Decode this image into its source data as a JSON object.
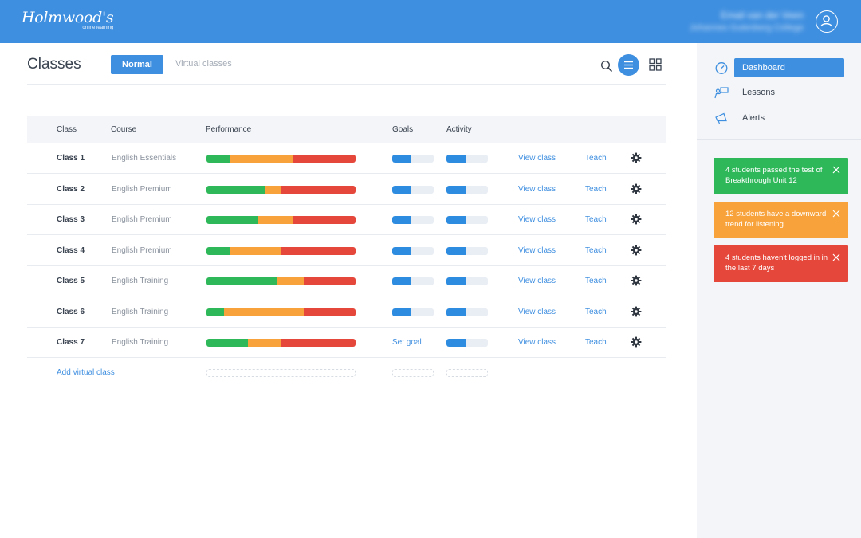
{
  "header": {
    "logo_text": "Holmwood's",
    "logo_subtext": "online learning",
    "user_name": "Email van der Veen",
    "user_school": "Johannes Gutenberg College"
  },
  "main": {
    "title": "Classes",
    "tabs": {
      "normal": "Normal",
      "virtual": "Virtual classes"
    },
    "columns": {
      "class": "Class",
      "course": "Course",
      "performance": "Performance",
      "goals": "Goals",
      "activity": "Activity"
    },
    "rows": [
      {
        "class": "Class 1",
        "course": "English Essentials",
        "performance": {
          "green": 0.16,
          "orange": 0.42,
          "red": 0.42
        },
        "goals": 0.46,
        "goal_label": "",
        "activity": 0.46,
        "view": "View class",
        "teach": "Teach"
      },
      {
        "class": "Class 2",
        "course": "English Premium",
        "performance": {
          "green": 0.39,
          "orange": 0.11,
          "red": 0.5
        },
        "goals": 0.46,
        "goal_label": "",
        "activity": 0.46,
        "view": "View class",
        "teach": "Teach"
      },
      {
        "class": "Class 3",
        "course": "English Premium",
        "performance": {
          "green": 0.35,
          "orange": 0.23,
          "red": 0.42
        },
        "goals": 0.46,
        "goal_label": "",
        "activity": 0.46,
        "view": "View class",
        "teach": "Teach"
      },
      {
        "class": "Class 4",
        "course": "English Premium",
        "performance": {
          "green": 0.16,
          "orange": 0.34,
          "red": 0.5
        },
        "goals": 0.46,
        "goal_label": "",
        "activity": 0.46,
        "view": "View class",
        "teach": "Teach"
      },
      {
        "class": "Class 5",
        "course": "English Training",
        "performance": {
          "green": 0.47,
          "orange": 0.18,
          "red": 0.35
        },
        "goals": 0.46,
        "goal_label": "",
        "activity": 0.46,
        "view": "View class",
        "teach": "Teach"
      },
      {
        "class": "Class 6",
        "course": "English Training",
        "performance": {
          "green": 0.12,
          "orange": 0.53,
          "red": 0.35
        },
        "goals": 0.46,
        "goal_label": "",
        "activity": 0.46,
        "view": "View class",
        "teach": "Teach"
      },
      {
        "class": "Class 7",
        "course": "English Training",
        "performance": {
          "green": 0.28,
          "orange": 0.22,
          "red": 0.5
        },
        "goals": null,
        "goal_label": "Set goal",
        "activity": 0.46,
        "view": "View class",
        "teach": "Teach"
      }
    ],
    "add_virtual": "Add virtual class"
  },
  "sidebar": {
    "nav": [
      {
        "label": "Dashboard",
        "icon": "gauge-icon",
        "active": true
      },
      {
        "label": "Lessons",
        "icon": "teacher-board-icon",
        "active": false
      },
      {
        "label": "Alerts",
        "icon": "megaphone-icon",
        "active": false
      }
    ],
    "alerts": [
      {
        "text": "4 students passed the test of Breakthrough Unit 12",
        "color": "#2fb85a"
      },
      {
        "text": "12 students have a downward trend for listening",
        "color": "#f7a23b"
      },
      {
        "text": "4 students haven't logged in in the last 7 days",
        "color": "#e5473b"
      }
    ]
  },
  "colors": {
    "accent": "#3f8fe0",
    "perf_green": "#2fb85a",
    "perf_orange": "#f7a23b",
    "perf_red": "#e5473b",
    "mini_bar": "#2d8ce0"
  }
}
